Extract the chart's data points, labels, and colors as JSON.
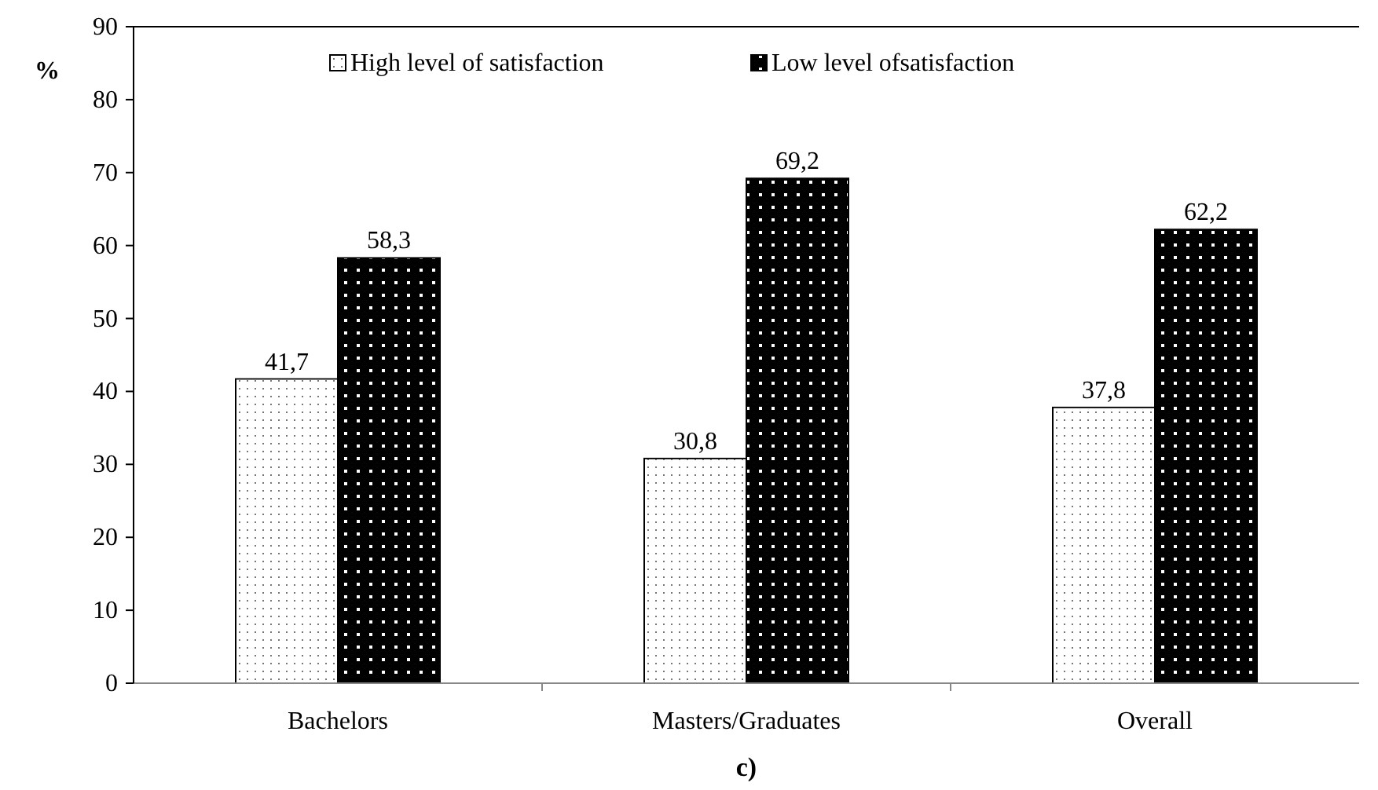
{
  "chart_data": {
    "type": "bar",
    "ylabel": "%",
    "categories": [
      "Bachelors",
      "Masters/Graduates",
      "Overall"
    ],
    "series": [
      {
        "name": "High level of satisfaction",
        "color": "#ffffff",
        "values": [
          41.7,
          30.8,
          37.8
        ],
        "value_labels": [
          "41,7",
          "30,8",
          "37,8"
        ]
      },
      {
        "name": "Low level ofsatisfaction",
        "color": "#000000",
        "values": [
          58.3,
          69.2,
          62.2
        ],
        "value_labels": [
          "58,3",
          "69,2",
          "62,2"
        ]
      }
    ],
    "ylim": [
      0,
      90
    ],
    "yticks": [
      0,
      10,
      20,
      30,
      40,
      50,
      60,
      70,
      80,
      90
    ],
    "grid": false,
    "legend": "top",
    "annotations": [
      "c)"
    ]
  }
}
